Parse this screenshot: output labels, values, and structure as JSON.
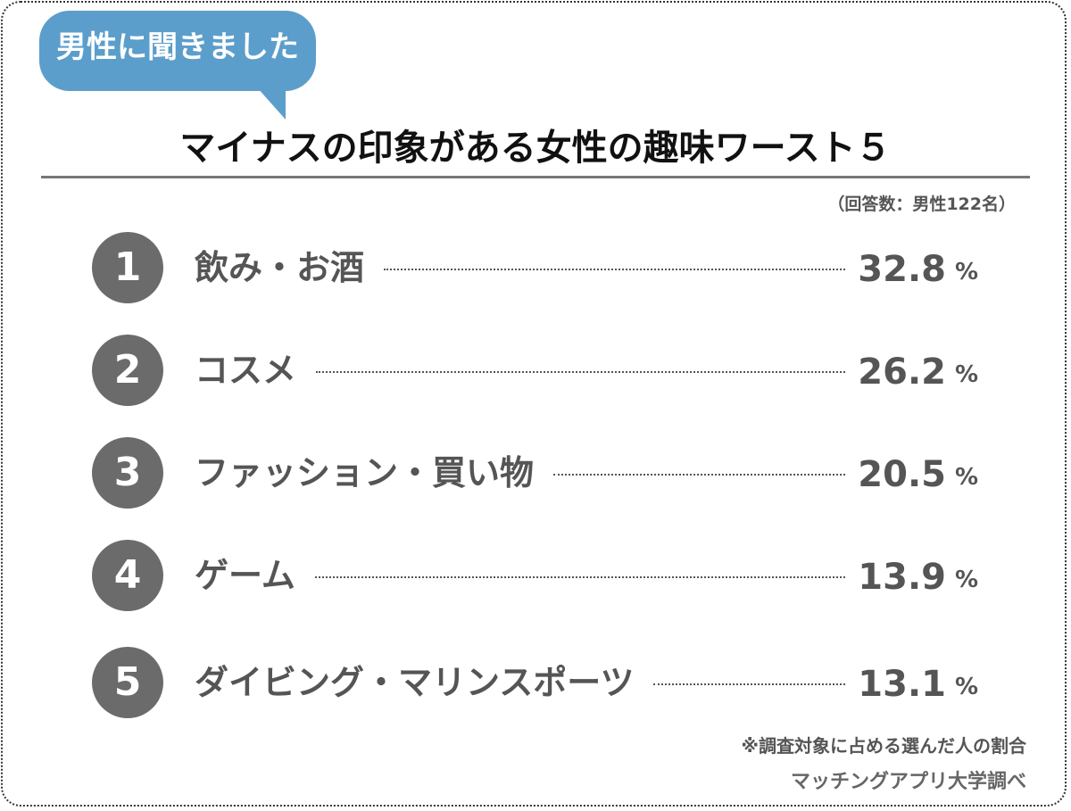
{
  "header": {
    "bubble": "男性に聞きました",
    "title": "マイナスの印象がある女性の趣味ワースト５",
    "note": "（回答数：男性122名）"
  },
  "colors": {
    "bubble": "#5c9ecb",
    "rank_circle": "#6b6b6b",
    "text": "#555555"
  },
  "chart_data": {
    "type": "table",
    "title": "マイナスの印象がある女性の趣味ワースト５",
    "unit": "%",
    "rows": [
      {
        "rank": "1",
        "label": "飲み・お酒",
        "value": "32.8"
      },
      {
        "rank": "2",
        "label": "コスメ",
        "value": "26.2"
      },
      {
        "rank": "3",
        "label": "ファッション・買い物",
        "value": "20.5"
      },
      {
        "rank": "4",
        "label": "ゲーム",
        "value": "13.9"
      },
      {
        "rank": "5",
        "label": "ダイビング・マリンスポーツ",
        "value": "13.1"
      }
    ]
  },
  "footer": {
    "note": "※調査対象に占める選んだ人の割合",
    "source": "マッチングアプリ大学調べ"
  }
}
